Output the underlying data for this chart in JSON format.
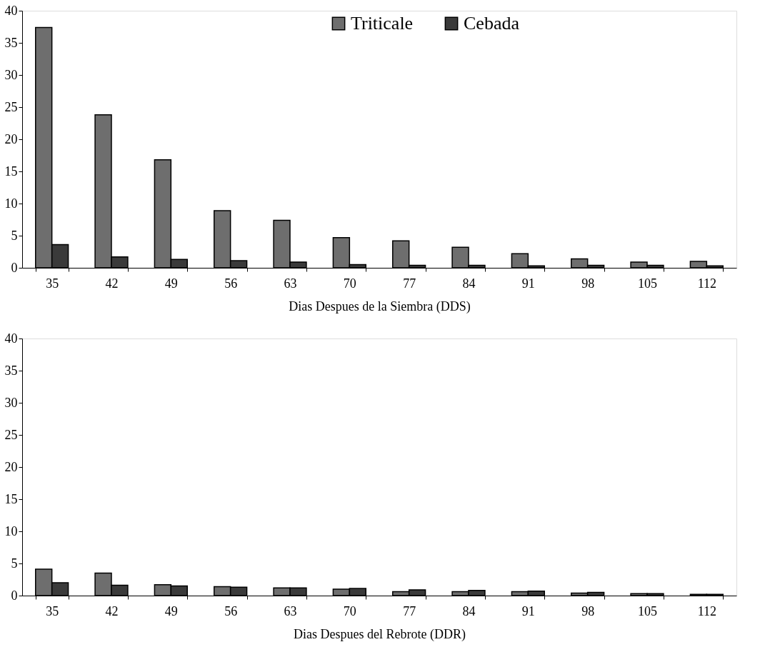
{
  "chart_data": [
    {
      "type": "bar",
      "xlabel": "Dias Despues de la Siembra (DDS)",
      "categories": [
        "35",
        "42",
        "49",
        "56",
        "63",
        "70",
        "77",
        "84",
        "91",
        "98",
        "105",
        "112"
      ],
      "series": [
        {
          "name": "Triticale",
          "color": "#6e6e6e",
          "values": [
            37.4,
            23.8,
            16.8,
            8.9,
            7.4,
            4.7,
            4.2,
            3.2,
            2.2,
            1.4,
            0.9,
            1.0
          ]
        },
        {
          "name": "Cebada",
          "color": "#3a3a3a",
          "values": [
            3.6,
            1.7,
            1.3,
            1.1,
            0.9,
            0.5,
            0.4,
            0.4,
            0.3,
            0.4,
            0.4,
            0.3
          ]
        }
      ],
      "ylim": [
        0,
        40
      ],
      "yticks": [
        0,
        5,
        10,
        15,
        20,
        25,
        30,
        35,
        40
      ],
      "grid": false,
      "legend": "top"
    },
    {
      "type": "bar",
      "xlabel": "Dias Despues del Rebrote (DDR)",
      "categories": [
        "35",
        "42",
        "49",
        "56",
        "63",
        "70",
        "77",
        "84",
        "91",
        "98",
        "105",
        "112"
      ],
      "series": [
        {
          "color": "#6e6e6e",
          "values": [
            4.1,
            3.5,
            1.7,
            1.4,
            1.2,
            1.0,
            0.6,
            0.6,
            0.6,
            0.4,
            0.3,
            0.2
          ]
        },
        {
          "color": "#3a3a3a",
          "values": [
            2.0,
            1.6,
            1.5,
            1.3,
            1.2,
            1.1,
            0.9,
            0.8,
            0.7,
            0.5,
            0.3,
            0.2
          ]
        }
      ],
      "ylim": [
        0,
        40
      ],
      "yticks": [
        0,
        5,
        10,
        15,
        20,
        25,
        30,
        35,
        40
      ],
      "grid": false
    }
  ]
}
